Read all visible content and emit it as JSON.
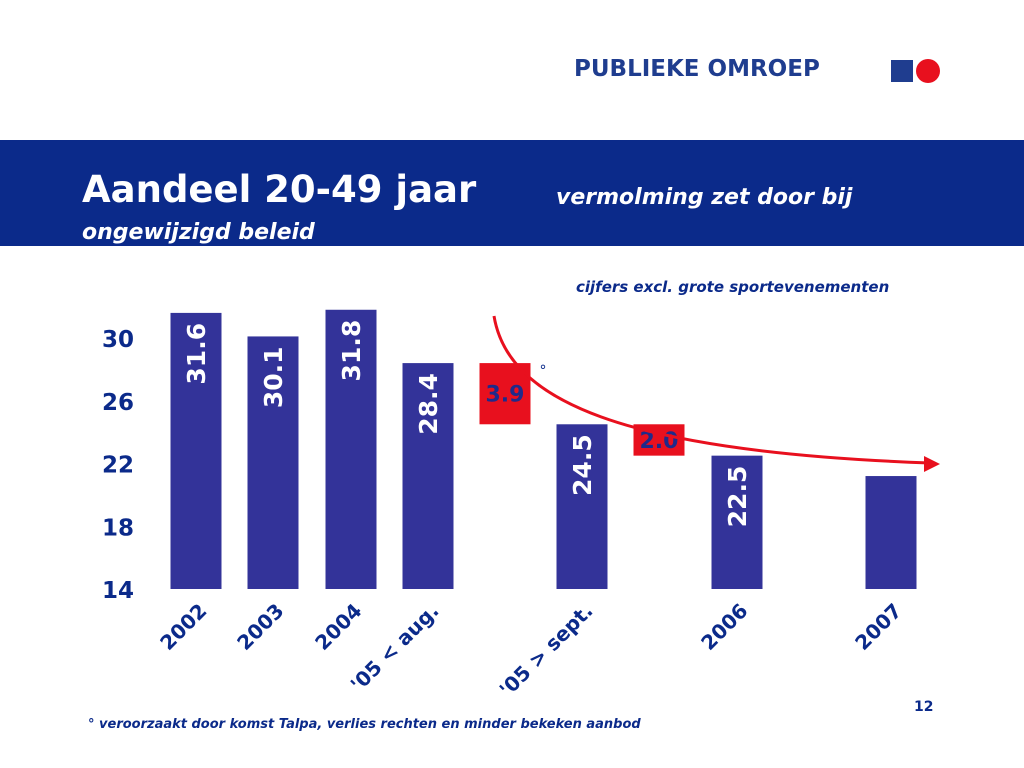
{
  "header": {
    "brand": "PUBLIEKE OMROEP",
    "brand_color": "#1f3d8f",
    "logo_square_color": "#1f3d8f",
    "logo_circle_color": "#e8101e"
  },
  "title": {
    "main": "Aandeel 20-49 jaar",
    "sub_line1": "vermolming zet door bij",
    "sub_line2": "ongewijzigd beleid",
    "band_color": "#0b2a8a"
  },
  "note_top": "cijfers excl. grote sportevenementen",
  "footnote": "° veroorzaakt door komst Talpa, verlies rechten en minder bekeken aanbod",
  "page_number": "12",
  "chart_data": {
    "type": "bar",
    "categories": [
      "2002",
      "2003",
      "2004",
      "'05 < aug.",
      "'05 > sept.",
      "2006",
      "2007"
    ],
    "values": [
      31.6,
      30.1,
      31.8,
      28.4,
      24.5,
      22.5,
      21.2
    ],
    "data_labels": [
      "31.6",
      "30.1",
      "31.8",
      "28.4",
      "24.5",
      "22.5",
      ""
    ],
    "ylim": [
      14,
      30
    ],
    "yticks": [
      30,
      26,
      22,
      18,
      14
    ],
    "bar_color": "#333399",
    "differences": [
      {
        "label": "3.9",
        "marker": "°",
        "between": [
          "'05 < aug.",
          "'05 > sept."
        ],
        "from": 28.4,
        "to": 24.5
      },
      {
        "label": "2.0",
        "between": [
          "'05 > sept.",
          "2006"
        ],
        "from": 24.5,
        "to": 22.5
      }
    ],
    "difference_color": "#e8101e",
    "trend_arrow_color": "#e8101e",
    "grid": false,
    "legend": "none"
  }
}
